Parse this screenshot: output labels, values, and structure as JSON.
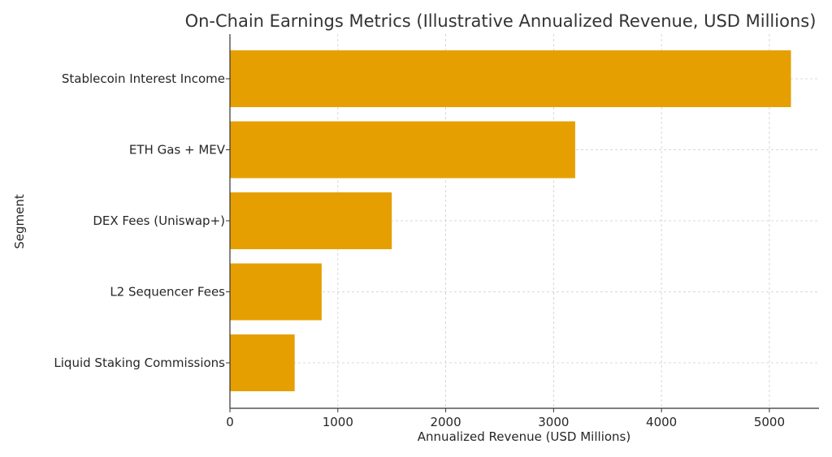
{
  "chart_data": {
    "type": "bar",
    "orientation": "horizontal",
    "title": "On-Chain Earnings Metrics (Illustrative Annualized Revenue, USD Millions)",
    "xlabel": "Annualized Revenue (USD Millions)",
    "ylabel": "Segment",
    "categories": [
      "Stablecoin Interest Income",
      "ETH Gas + MEV",
      "DEX Fees (Uniswap+)",
      "L2 Sequencer Fees",
      "Liquid Staking Commissions"
    ],
    "values": [
      5200,
      3200,
      1500,
      850,
      600
    ],
    "xlim": [
      0,
      5460
    ],
    "xticks": [
      0,
      1000,
      2000,
      3000,
      4000,
      5000
    ],
    "grid": true,
    "bar_color": "#E69F00"
  }
}
